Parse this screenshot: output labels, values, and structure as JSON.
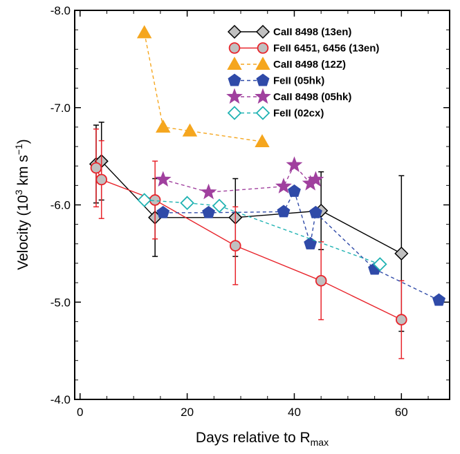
{
  "chart_data": {
    "type": "line",
    "xlabel_main": "Days relative to R",
    "xlabel_sub": "max",
    "ylabel_main": "Velocity   (10",
    "ylabel_sup1": "3",
    "ylabel_mid": " km s",
    "ylabel_sup2": "−1",
    "ylabel_end": ")",
    "xlim": [
      -1,
      69
    ],
    "ylim": [
      -4.0,
      -8.0
    ],
    "y_inverted": true,
    "xticks": [
      0,
      20,
      40,
      60
    ],
    "xtick_labels": [
      "0",
      "20",
      "40",
      "60"
    ],
    "yticks": [
      -8.0,
      -7.0,
      -6.0,
      -5.0,
      -4.0
    ],
    "ytick_labels": [
      "-8.0",
      "-7.0",
      "-6.0",
      "-5.0",
      "-4.0"
    ],
    "grid": false,
    "legend_position": "top-right",
    "series": [
      {
        "name": "Ca II 8498 (13en)",
        "legend_label": "CaII 8498 (13en)",
        "color": "#000000",
        "marker": "diamond",
        "marker_fill": "#c0c0c0",
        "line": "solid",
        "x": [
          3,
          4,
          14,
          29,
          45,
          60
        ],
        "y": [
          -6.42,
          -6.45,
          -5.87,
          -5.87,
          -5.94,
          -5.5
        ],
        "yerr": [
          0.4,
          0.4,
          0.4,
          0.4,
          0.4,
          0.8
        ]
      },
      {
        "name": "Fe II 6451, 6456 (13en)",
        "legend_label": "FeII 6451, 6456 (13en)",
        "color": "#e8242b",
        "marker": "circle",
        "marker_fill": "#c0c0c0",
        "line": "solid",
        "x": [
          3,
          4,
          14,
          29,
          45,
          60
        ],
        "y": [
          -6.38,
          -6.26,
          -6.05,
          -5.58,
          -5.22,
          -4.82
        ],
        "yerr": [
          0.4,
          0.4,
          0.4,
          0.4,
          0.4,
          0.4
        ]
      },
      {
        "name": "Ca II 8498 (12Z)",
        "legend_label": "CaII 8498 (12Z)",
        "color": "#f5a61e",
        "marker": "triangle",
        "marker_fill": "#f5a61e",
        "line": "dashed",
        "x": [
          12,
          15.5,
          20.5,
          34
        ],
        "y": [
          -7.77,
          -6.8,
          -6.76,
          -6.65
        ]
      },
      {
        "name": "Fe II (05hk)",
        "legend_label": "FeII (05hk)",
        "color": "#2f4aa8",
        "marker": "pentagon",
        "marker_fill": "#2f4aa8",
        "line": "dashed",
        "x": [
          15.5,
          24,
          38,
          40,
          43,
          44,
          55,
          67
        ],
        "y": [
          -5.92,
          -5.92,
          -5.93,
          -6.14,
          -5.6,
          -5.92,
          -5.34,
          -5.02
        ]
      },
      {
        "name": "Ca II 8498 (05hk)",
        "legend_label": "CaII 8498 (05hk)",
        "color": "#a0409e",
        "marker": "star",
        "marker_fill": "#a0409e",
        "line": "dashed",
        "x": [
          15.5,
          24,
          38,
          40,
          43,
          44
        ],
        "y": [
          -6.26,
          -6.13,
          -6.19,
          -6.41,
          -6.22,
          -6.26
        ]
      },
      {
        "name": "Fe II (02cx)",
        "legend_label": "FeII (02cx)",
        "color": "#1fb2b2",
        "marker": "open-diamond",
        "marker_fill": "#ffffff",
        "line": "dashed",
        "x": [
          12,
          20,
          26,
          56
        ],
        "y": [
          -6.05,
          -6.02,
          -5.99,
          -5.39
        ]
      }
    ]
  }
}
